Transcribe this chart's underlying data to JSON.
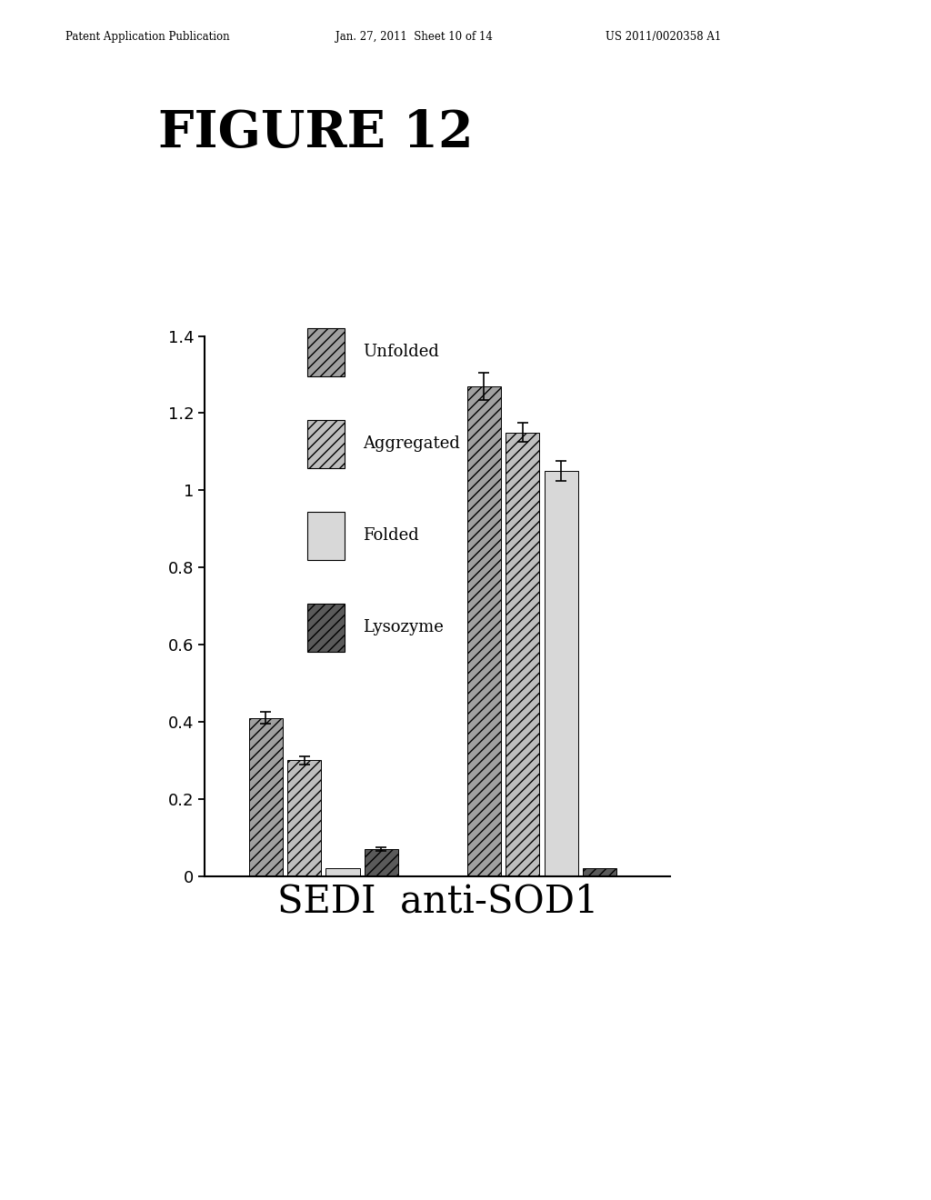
{
  "title": "FIGURE 12",
  "header_left": "Patent Application Publication",
  "header_center": "Jan. 27, 2011  Sheet 10 of 14",
  "header_right": "US 2011/0020358 A1",
  "xlabel": "SEDI  anti-SOD1",
  "ylim": [
    0,
    1.4
  ],
  "yticks": [
    0,
    0.2,
    0.4,
    0.6,
    0.8,
    1.0,
    1.2,
    1.4
  ],
  "ytick_labels": [
    "0",
    "0.2",
    "0.4",
    "0.6",
    "0.8",
    "1",
    "1.2",
    "1.4"
  ],
  "categories": [
    "Unfolded",
    "Aggregated",
    "Folded",
    "Lysozyme"
  ],
  "values": [
    [
      0.41,
      0.3,
      0.02,
      0.07
    ],
    [
      1.27,
      1.15,
      1.05,
      0.02
    ]
  ],
  "errors": [
    [
      0.015,
      0.01,
      0.005,
      0.005
    ],
    [
      0.035,
      0.025,
      0.025,
      0.005
    ]
  ],
  "bar_colors": [
    "#a0a0a0",
    "#bebebe",
    "#d8d8d8",
    "#5a5a5a"
  ],
  "bar_hatches": [
    "///",
    "///",
    "",
    "///"
  ],
  "background_color": "#ffffff",
  "bar_width": 0.12,
  "group_centers": [
    0.42,
    1.1
  ]
}
